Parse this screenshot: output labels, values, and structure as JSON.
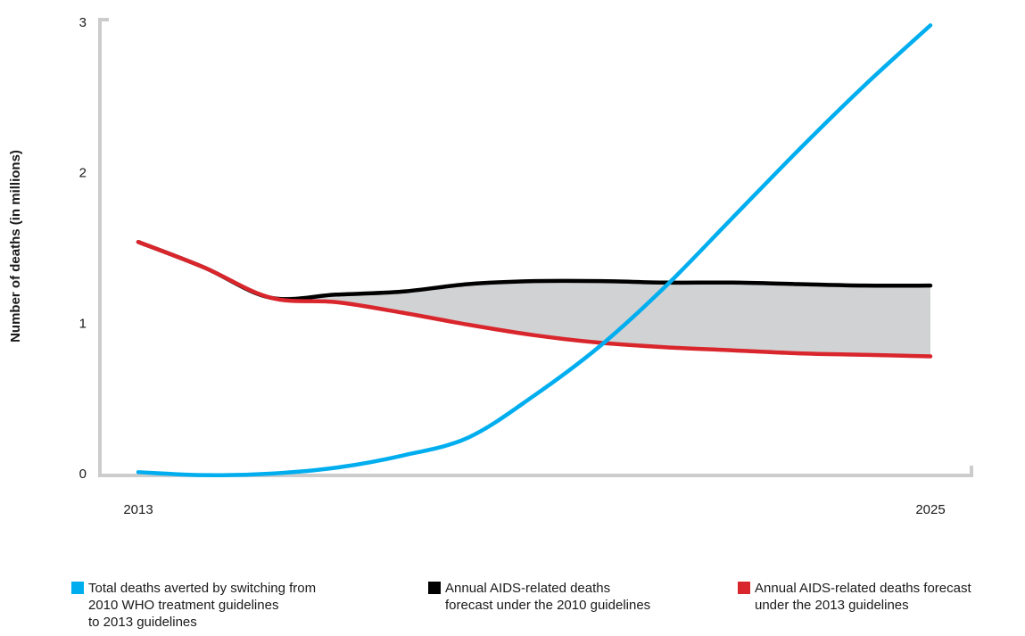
{
  "chart_data": {
    "type": "line",
    "title": "",
    "xlabel": "",
    "ylabel": "Number of deaths (in millions)",
    "xlim": [
      2013,
      2025
    ],
    "ylim": [
      0,
      3
    ],
    "x_ticks": [
      "2013",
      "2025"
    ],
    "y_ticks": [
      "0",
      "1",
      "2",
      "3"
    ],
    "grid": false,
    "legend_position": "bottom",
    "series": [
      {
        "key": "averted",
        "name": "Total deaths averted by switching from\n2010 WHO treatment guidelines\nto 2013 guidelines",
        "color": "#00aeef",
        "x": [
          2013,
          2014,
          2015,
          2016,
          2017,
          2018,
          2019,
          2020,
          2021,
          2022,
          2023,
          2024,
          2025
        ],
        "y": [
          0.01,
          -0.01,
          0.0,
          0.04,
          0.12,
          0.24,
          0.52,
          0.85,
          1.25,
          1.7,
          2.15,
          2.58,
          2.98
        ]
      },
      {
        "key": "forecast_2010",
        "name": "Annual AIDS-related deaths\nforecast under the 2010 guidelines",
        "color": "#000000",
        "x": [
          2013,
          2014,
          2015,
          2016,
          2017,
          2018,
          2019,
          2020,
          2021,
          2022,
          2023,
          2024,
          2025
        ],
        "y": [
          1.54,
          1.37,
          1.17,
          1.19,
          1.21,
          1.26,
          1.28,
          1.28,
          1.27,
          1.27,
          1.26,
          1.25,
          1.25
        ]
      },
      {
        "key": "forecast_2013",
        "name": "Annual AIDS-related deaths forecast\nunder the 2013 guidelines",
        "color": "#d9262c",
        "x": [
          2013,
          2014,
          2015,
          2016,
          2017,
          2018,
          2019,
          2020,
          2021,
          2022,
          2023,
          2024,
          2025
        ],
        "y": [
          1.54,
          1.37,
          1.17,
          1.14,
          1.07,
          0.99,
          0.92,
          0.87,
          0.84,
          0.82,
          0.8,
          0.79,
          0.78
        ]
      }
    ],
    "shaded_area": {
      "between": [
        "forecast_2010",
        "forecast_2013"
      ],
      "from_x": 2015,
      "color": "#d1d2d4"
    },
    "axis_color": "#cccccc"
  }
}
